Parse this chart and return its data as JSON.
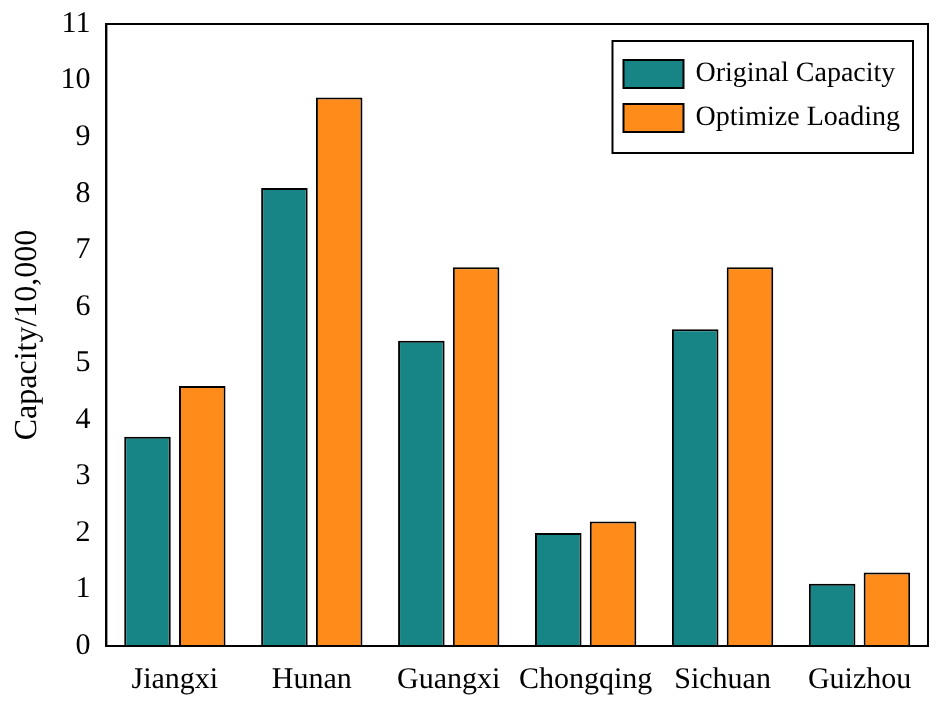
{
  "chart_data": {
    "type": "bar",
    "ylabel": "Capacity/10,000",
    "categories": [
      "Jiangxi",
      "Hunan",
      "Guangxi",
      "Chongqing",
      "Sichuan",
      "Guizhou"
    ],
    "series": [
      {
        "name": "Original Capacity",
        "color": "#178585",
        "values": [
          3.7,
          8.1,
          5.4,
          2.0,
          5.6,
          1.1
        ]
      },
      {
        "name": "Optimize Loading",
        "color": "#ff8c1a",
        "values": [
          4.6,
          9.7,
          6.7,
          2.2,
          6.7,
          1.3
        ]
      }
    ],
    "ylim": [
      0,
      11
    ],
    "yticks": [
      0,
      1,
      2,
      3,
      4,
      5,
      6,
      7,
      8,
      9,
      10,
      11
    ],
    "grid": false,
    "legend": "top right"
  }
}
